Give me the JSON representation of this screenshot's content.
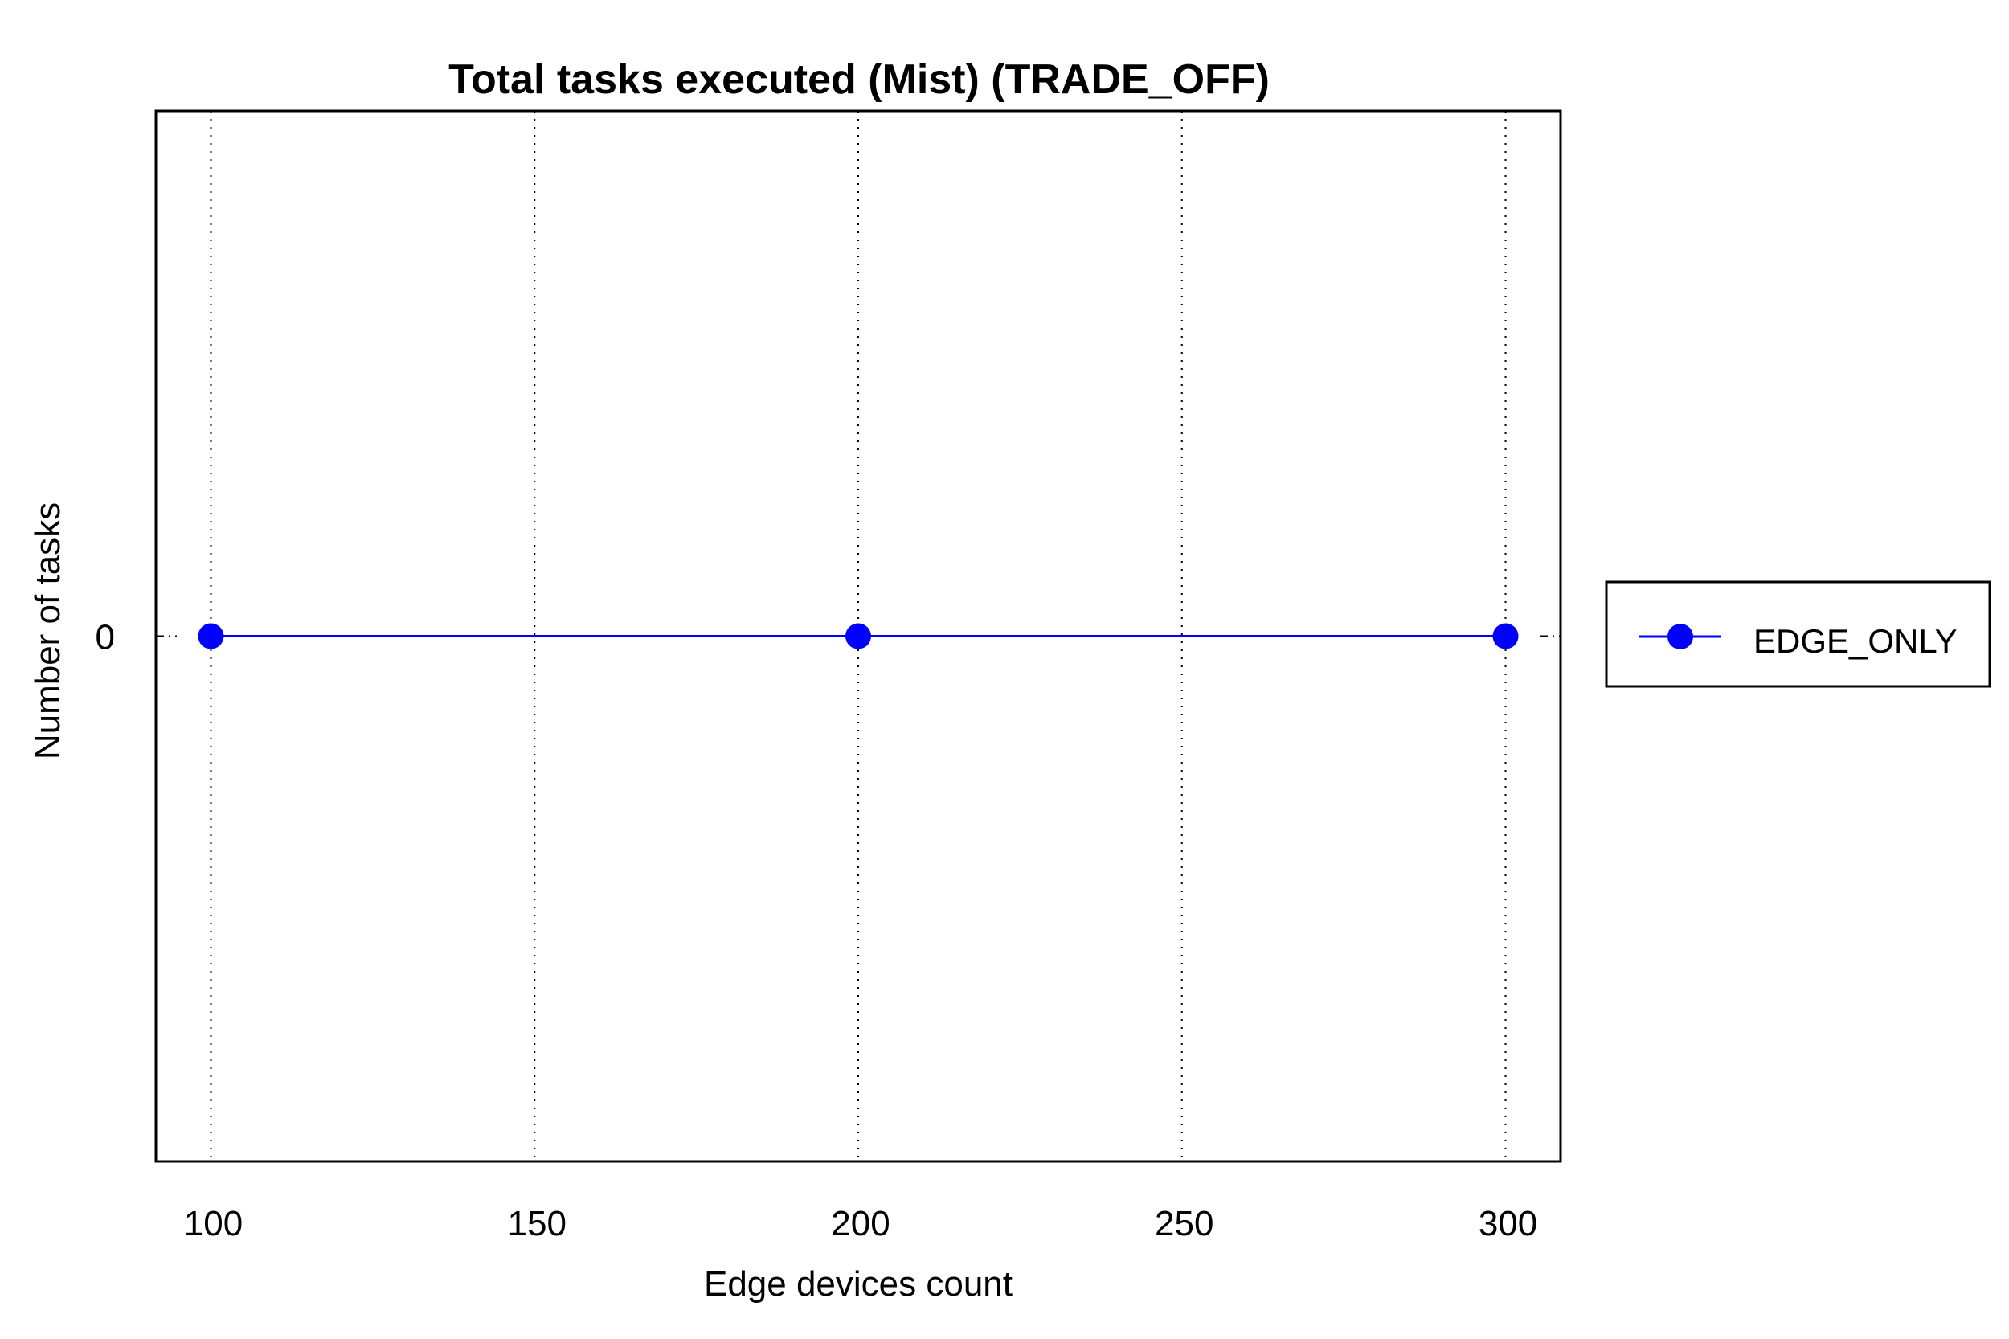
{
  "chart_data": {
    "type": "line",
    "title": "Total tasks executed (Mist) (TRADE_OFF)",
    "xlabel": "Edge devices count",
    "ylabel": "Number of tasks",
    "x": [
      100,
      200,
      300
    ],
    "xlim": [
      91.5,
      308.5
    ],
    "ylim": [
      -1,
      1
    ],
    "xticks": [
      100,
      150,
      200,
      250,
      300
    ],
    "xtick_labels": [
      "100",
      "150",
      "200",
      "250",
      "300"
    ],
    "yticks": [
      0
    ],
    "ytick_labels": [
      "0"
    ],
    "grid": "vertical-dotted",
    "legend_position": "outside-right",
    "series": [
      {
        "name": "EDGE_ONLY",
        "color": "#0000ff",
        "marker": "circle",
        "values": [
          0,
          0,
          0
        ]
      }
    ]
  }
}
